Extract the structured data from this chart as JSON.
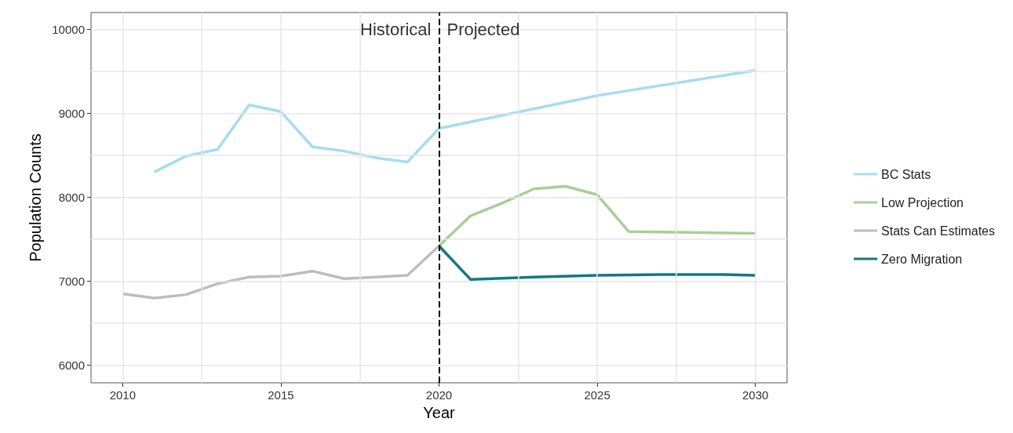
{
  "chart_data": {
    "type": "line",
    "xlabel": "Year",
    "ylabel": "Population Counts",
    "xlim": [
      2009,
      2031
    ],
    "xticks": [
      2010,
      {
        "value": 2012.5,
        "label": null
      },
      2015,
      {
        "value": 2017.5,
        "label": null
      },
      2020,
      {
        "value": 2022.5,
        "label": null
      },
      2025,
      {
        "value": 2027.5,
        "label": null
      },
      2030
    ],
    "ylim": [
      5790,
      10200
    ],
    "yticks": [
      6000,
      {
        "value": 6500,
        "label": null
      },
      7000,
      {
        "value": 7500,
        "label": null
      },
      8000,
      {
        "value": 8500,
        "label": null
      },
      9000,
      {
        "value": 9500,
        "label": null
      },
      10000
    ],
    "grid": true,
    "legend": "right",
    "marker": "none",
    "line_style": "solid",
    "series": [
      {
        "name": "BC Stats",
        "color": "#a6dcf2",
        "x": [
          2011,
          2012,
          2013,
          2014,
          2015,
          2016,
          2017,
          2018,
          2019,
          2020,
          2025,
          2030
        ],
        "values": [
          8300,
          8490,
          8570,
          9100,
          9020,
          8600,
          8550,
          8470,
          8420,
          8820,
          9210,
          9510
        ]
      },
      {
        "name": "Low Projection",
        "color": "#a9cf96",
        "x": [
          2020,
          2021,
          2022,
          2023,
          2024,
          2025,
          2026,
          2030
        ],
        "values": [
          7420,
          7780,
          7930,
          8100,
          8130,
          8030,
          7590,
          7570
        ]
      },
      {
        "name": "Stats Can Estimates",
        "color": "#bdbdbd",
        "x": [
          2010,
          2011,
          2012,
          2013,
          2014,
          2015,
          2016,
          2017,
          2018,
          2019,
          2020
        ],
        "values": [
          6850,
          6800,
          6840,
          6970,
          7050,
          7060,
          7120,
          7030,
          7050,
          7070,
          7420
        ]
      },
      {
        "name": "Zero Migration",
        "color": "#107a80",
        "x": [
          2020,
          2021,
          2023,
          2025,
          2027,
          2029,
          2030
        ],
        "values": [
          7420,
          7020,
          7050,
          7070,
          7080,
          7080,
          7070
        ]
      }
    ],
    "ref_lines": [
      {
        "axis": "x",
        "value": 2020,
        "color": "#000000",
        "line_style": "dashed"
      }
    ],
    "annotations": [
      "Historical",
      "Projected"
    ]
  }
}
